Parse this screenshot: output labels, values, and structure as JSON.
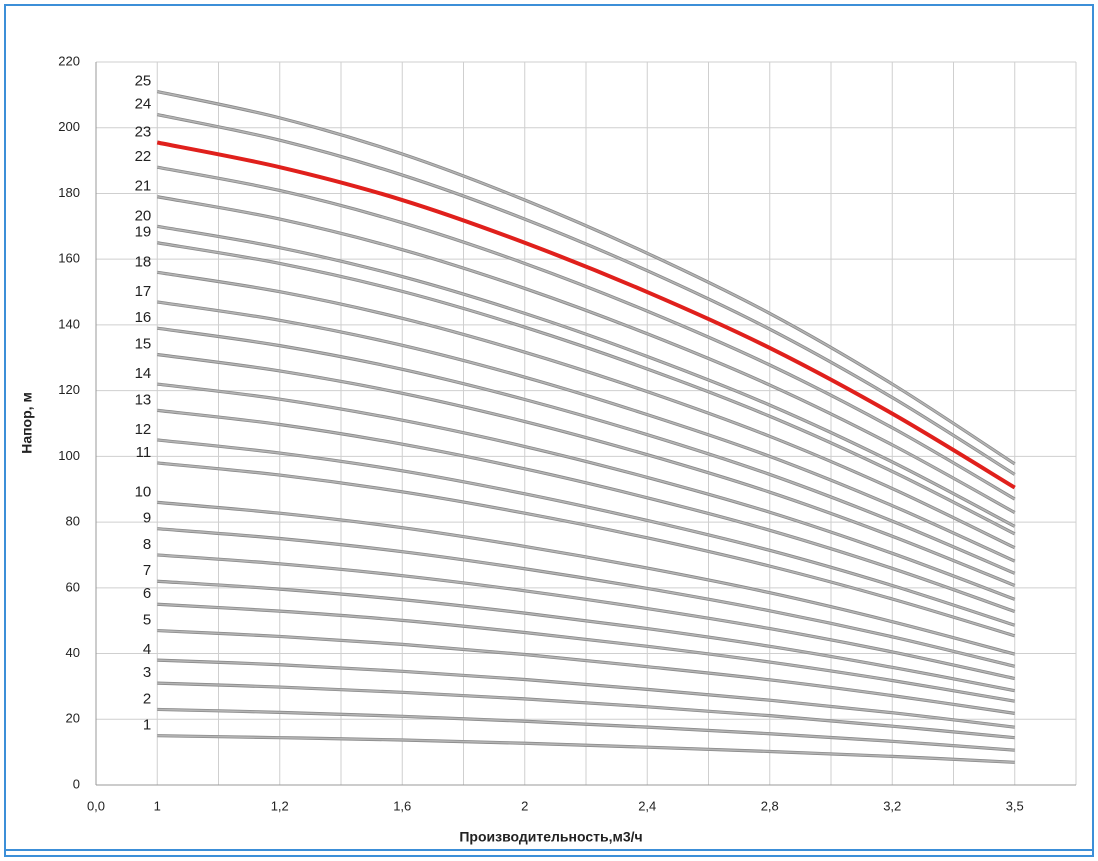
{
  "chart_data": {
    "type": "line",
    "y_label": "Напор, м",
    "x_label": "Производительность,м3/ч",
    "categories": [
      "0,0",
      "1",
      "1,2",
      "1,6",
      "2",
      "2,4",
      "2,8",
      "3,2",
      "3,5"
    ],
    "ylim": [
      0,
      220
    ],
    "yticks": [
      0,
      20,
      40,
      60,
      80,
      100,
      120,
      140,
      160,
      180,
      200,
      220
    ],
    "grid": true,
    "series": [
      {
        "name": "1",
        "color": "#b4b4b4",
        "values": [
          null,
          15,
          14.4,
          13.7,
          12.7,
          11.5,
          10.2,
          8.7,
          6.9
        ]
      },
      {
        "name": "2",
        "color": "#b4b4b4",
        "values": [
          null,
          23,
          22.1,
          20.9,
          19.4,
          17.6,
          15.6,
          13.3,
          10.6
        ]
      },
      {
        "name": "3",
        "color": "#b4b4b4",
        "values": [
          null,
          31,
          29.8,
          28.2,
          26.2,
          23.8,
          21.1,
          17.9,
          14.4
        ]
      },
      {
        "name": "4",
        "color": "#b4b4b4",
        "values": [
          null,
          38,
          36.6,
          34.6,
          32.1,
          29.1,
          25.8,
          22,
          17.6
        ]
      },
      {
        "name": "5",
        "color": "#b4b4b4",
        "values": [
          null,
          47,
          45.2,
          42.8,
          39.7,
          36,
          32,
          27.2,
          21.8
        ]
      },
      {
        "name": "6",
        "color": "#b4b4b4",
        "values": [
          null,
          55,
          52.9,
          50.1,
          46.4,
          42.2,
          37.4,
          31.8,
          25.5
        ]
      },
      {
        "name": "7",
        "color": "#b4b4b4",
        "values": [
          null,
          62,
          59.6,
          56.4,
          52.3,
          47.6,
          42.2,
          35.8,
          28.7
        ]
      },
      {
        "name": "8",
        "color": "#b4b4b4",
        "values": [
          null,
          70,
          67.3,
          63.7,
          59.1,
          53.7,
          47.6,
          40.5,
          32.4
        ]
      },
      {
        "name": "9",
        "color": "#b4b4b4",
        "values": [
          null,
          78,
          75,
          71,
          65.8,
          59.8,
          53,
          45.1,
          36.1
        ]
      },
      {
        "name": "10",
        "color": "#b4b4b4",
        "values": [
          null,
          86,
          82.7,
          78.3,
          72.6,
          66,
          58.5,
          49.7,
          39.8
        ]
      },
      {
        "name": "11",
        "color": "#b4b4b4",
        "values": [
          null,
          98,
          94.3,
          89.2,
          82.7,
          75.2,
          66.6,
          56.6,
          45.4
        ]
      },
      {
        "name": "12",
        "color": "#b4b4b4",
        "values": [
          null,
          105,
          101,
          95.6,
          88.6,
          80.5,
          71.4,
          60.7,
          48.6
        ]
      },
      {
        "name": "13",
        "color": "#b4b4b4",
        "values": [
          null,
          114,
          109.7,
          103.7,
          96.2,
          87.4,
          77.5,
          65.9,
          52.8
        ]
      },
      {
        "name": "14",
        "color": "#b4b4b4",
        "values": [
          null,
          122,
          117.4,
          111,
          103,
          93.6,
          83,
          70.5,
          56.5
        ]
      },
      {
        "name": "15",
        "color": "#b4b4b4",
        "values": [
          null,
          131,
          126,
          119.2,
          110.6,
          100.5,
          89.1,
          75.7,
          60.7
        ]
      },
      {
        "name": "16",
        "color": "#b4b4b4",
        "values": [
          null,
          139,
          133.7,
          126.5,
          117.3,
          106.6,
          94.5,
          80.3,
          64.4
        ]
      },
      {
        "name": "17",
        "color": "#b4b4b4",
        "values": [
          null,
          147,
          141.4,
          133.8,
          124.1,
          112.7,
          100,
          85,
          68.1
        ]
      },
      {
        "name": "18",
        "color": "#b4b4b4",
        "values": [
          null,
          156,
          150.1,
          142,
          131.7,
          119.7,
          106.1,
          90.2,
          72.2
        ]
      },
      {
        "name": "19",
        "color": "#b4b4b4",
        "values": [
          null,
          165,
          158.7,
          150.2,
          139.3,
          126.6,
          112.2,
          95.4,
          76.4
        ]
      },
      {
        "name": "20",
        "color": "#b4b4b4",
        "values": [
          null,
          170,
          163.5,
          154.7,
          143.5,
          130.4,
          115.6,
          98.3,
          78.7
        ]
      },
      {
        "name": "21",
        "color": "#b4b4b4",
        "values": [
          null,
          179,
          172.2,
          162.9,
          151.1,
          137.3,
          121.7,
          103.5,
          82.9
        ]
      },
      {
        "name": "22",
        "color": "#b4b4b4",
        "values": [
          null,
          188,
          180.9,
          171.1,
          158.7,
          144.2,
          127.8,
          108.7,
          87
        ]
      },
      {
        "name": "23",
        "color": "#e0201c",
        "values": [
          null,
          195.5,
          188,
          178,
          165,
          150,
          133,
          113,
          90.5
        ]
      },
      {
        "name": "24",
        "color": "#b4b4b4",
        "values": [
          null,
          204,
          196.2,
          185.6,
          172.2,
          156.5,
          138.7,
          117.9,
          94.5
        ]
      },
      {
        "name": "25",
        "color": "#b4b4b4",
        "values": [
          null,
          211,
          203,
          192,
          178,
          161.8,
          143.5,
          122,
          97.7
        ]
      }
    ]
  }
}
